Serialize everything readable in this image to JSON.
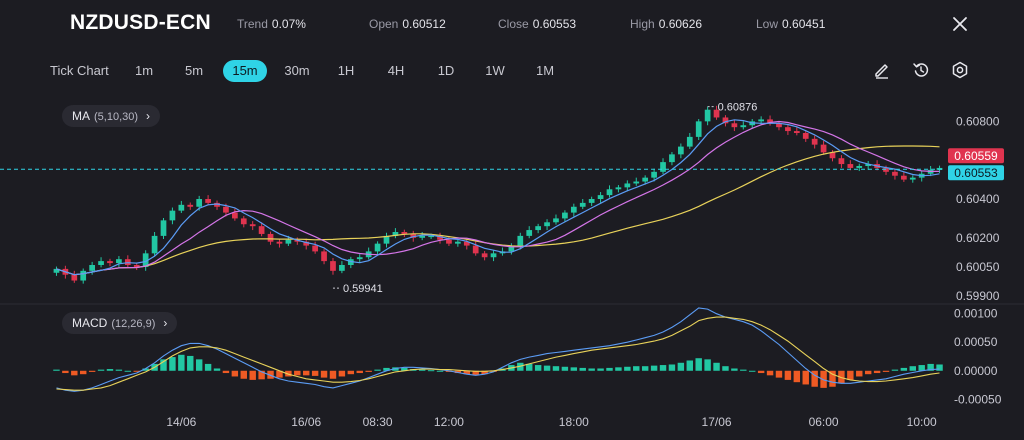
{
  "header": {
    "symbol": "NZDUSD-ECN",
    "stats": [
      {
        "label": "Trend",
        "value": "0.07%"
      },
      {
        "label": "Open",
        "value": "0.60512"
      },
      {
        "label": "Close",
        "value": "0.60553"
      },
      {
        "label": "High",
        "value": "0.60626"
      },
      {
        "label": "Low",
        "value": "0.60451"
      }
    ],
    "close_icon": "close-icon"
  },
  "toolbar": {
    "chart_type": "Tick Chart",
    "timeframes": [
      "1m",
      "5m",
      "15m",
      "30m",
      "1H",
      "4H",
      "1D",
      "1W",
      "1M"
    ],
    "active_timeframe": "15m",
    "tools": [
      "pencil-icon",
      "reset-icon",
      "settings-icon"
    ]
  },
  "indicators": {
    "ma": {
      "label": "MA",
      "params": "(5,10,30)"
    },
    "macd": {
      "label": "MACD",
      "params": "(12,26,9)"
    }
  },
  "colors": {
    "background": "#1c1c22",
    "bull": "#22c7a3",
    "bear": "#e0344f",
    "active_tab": "#2fd3e6",
    "ma5": "#5b9cf5",
    "ma10": "#d475e8",
    "ma30": "#e8d25a",
    "macd_hist_pos": "#22c7a3",
    "macd_hist_neg": "#ee5a24",
    "price_badge_high": "#e0344f",
    "price_badge_close": "#2fd3e6"
  },
  "price_badges": {
    "upper": "0.60559",
    "lower": "0.60553"
  },
  "annotations": {
    "high": "0.60876",
    "low": "0.59941"
  },
  "chart_data": [
    {
      "type": "candlestick",
      "title": "",
      "y_ticks": [
        "0.60800",
        "0.60400",
        "0.60200",
        "0.60050",
        "0.59900"
      ],
      "x_ticks": [
        "14/06",
        "16/06",
        "08:30",
        "12:00",
        "18:00",
        "17/06",
        "06:00",
        "10:00"
      ],
      "ylim": [
        0.5989,
        0.6091
      ],
      "current_price": 0.60553,
      "overlays": [
        "MA 5",
        "MA 10",
        "MA 30"
      ],
      "close_series": [
        0.6004,
        0.6001,
        0.5998,
        0.6003,
        0.6006,
        0.6008,
        0.6007,
        0.6009,
        0.6006,
        0.6005,
        0.6012,
        0.6021,
        0.6029,
        0.6034,
        0.6037,
        0.6036,
        0.604,
        0.6038,
        0.6036,
        0.6033,
        0.603,
        0.6027,
        0.6026,
        0.6022,
        0.6018,
        0.6017,
        0.6019,
        0.6018,
        0.6016,
        0.6013,
        0.6008,
        0.6003,
        0.6006,
        0.6009,
        0.601,
        0.6013,
        0.6017,
        0.6021,
        0.6023,
        0.6022,
        0.602,
        0.6021,
        0.6021,
        0.6019,
        0.6017,
        0.6018,
        0.6016,
        0.6012,
        0.601,
        0.6012,
        0.6013,
        0.6016,
        0.6021,
        0.6024,
        0.6026,
        0.6028,
        0.603,
        0.6033,
        0.6036,
        0.6038,
        0.604,
        0.6042,
        0.6045,
        0.6046,
        0.6048,
        0.6049,
        0.6051,
        0.6054,
        0.6059,
        0.6063,
        0.6067,
        0.6072,
        0.608,
        0.6086,
        0.6082,
        0.6079,
        0.6077,
        0.6078,
        0.608,
        0.6081,
        0.6079,
        0.6077,
        0.6075,
        0.6074,
        0.6071,
        0.6068,
        0.6064,
        0.6061,
        0.6058,
        0.6056,
        0.6057,
        0.6058,
        0.6056,
        0.6054,
        0.6052,
        0.605,
        0.6051,
        0.6053,
        0.6055,
        0.6056
      ]
    },
    {
      "type": "histogram",
      "title": "MACD",
      "y_ticks": [
        "0.00100",
        "0.00050",
        "0.00000",
        "-0.00050"
      ],
      "ylim": [
        -0.0006,
        0.0011
      ],
      "histogram": [
        2e-05,
        -4e-05,
        -8e-05,
        -6e-05,
        -2e-05,
        2e-05,
        3e-05,
        2e-05,
        0.0,
        -1e-05,
        4e-05,
        0.00012,
        0.0002,
        0.00024,
        0.00028,
        0.00026,
        0.0002,
        0.00012,
        4e-05,
        -4e-05,
        -0.0001,
        -0.00014,
        -0.00016,
        -0.00015,
        -0.00014,
        -0.00012,
        -0.0001,
        -8e-05,
        -8e-05,
        -9e-05,
        -0.00012,
        -0.00014,
        -0.0001,
        -6e-05,
        -4e-05,
        -2e-05,
        2e-05,
        5e-05,
        6e-05,
        5e-05,
        3e-05,
        2e-05,
        1e-05,
        0.0,
        -2e-05,
        -4e-05,
        -6e-05,
        -8e-05,
        -6e-05,
        -2e-05,
        4e-05,
        0.0001,
        0.00014,
        0.00012,
        0.0001,
        9e-05,
        8e-05,
        7e-05,
        6e-05,
        5e-05,
        4e-05,
        4e-05,
        5e-05,
        6e-05,
        7e-05,
        8e-05,
        8e-05,
        9e-05,
        0.0001,
        0.00011,
        0.00014,
        0.00018,
        0.00022,
        0.0002,
        0.00014,
        8e-05,
        4e-05,
        2e-05,
        0.0,
        -4e-05,
        -8e-05,
        -0.00012,
        -0.00016,
        -0.0002,
        -0.00024,
        -0.00028,
        -0.0003,
        -0.00028,
        -0.00022,
        -0.00016,
        -0.0001,
        -6e-05,
        -4e-05,
        -2e-05,
        2e-05,
        5e-05,
        8e-05,
        0.0001,
        0.00012,
        0.00011
      ],
      "macd_line": [
        -0.0003,
        -0.00034,
        -0.00036,
        -0.00034,
        -0.0003,
        -0.00024,
        -0.00018,
        -0.00012,
        -8e-05,
        -4e-05,
        4e-05,
        0.00014,
        0.00026,
        0.00036,
        0.00044,
        0.00048,
        0.00048,
        0.00044,
        0.00038,
        0.0003,
        0.00022,
        0.00014,
        6e-05,
        -2e-05,
        -8e-05,
        -0.00014,
        -0.00018,
        -0.0002,
        -0.00022,
        -0.00024,
        -0.00028,
        -0.0003,
        -0.00026,
        -0.00022,
        -0.00018,
        -0.00012,
        -6e-05,
        0.0,
        4e-05,
        6e-05,
        6e-05,
        5e-05,
        4e-05,
        2e-05,
        0.0,
        -3e-05,
        -6e-05,
        -8e-05,
        -6e-05,
        -2e-05,
        6e-05,
        0.00014,
        0.0002,
        0.00024,
        0.00027,
        0.0003,
        0.00032,
        0.00034,
        0.00036,
        0.00038,
        0.0004,
        0.00042,
        0.00044,
        0.00047,
        0.0005,
        0.00054,
        0.00058,
        0.00062,
        0.00068,
        0.00076,
        0.00086,
        0.00098,
        0.0011,
        0.00108,
        0.001,
        0.00094,
        0.0009,
        0.00086,
        0.0008,
        0.0007,
        0.00058,
        0.00046,
        0.00032,
        0.00018,
        4e-05,
        -8e-05,
        -0.00016,
        -0.0002,
        -0.00022,
        -0.00022,
        -0.0002,
        -0.00018,
        -0.00016,
        -0.00014,
        -0.0001,
        -6e-05,
        -3e-05,
        0.0,
        2e-05,
        3e-05
      ],
      "signal_line": [
        -0.00032,
        -0.00033,
        -0.00034,
        -0.00034,
        -0.00032,
        -0.0003,
        -0.00026,
        -0.0002,
        -0.00014,
        -8e-05,
        -2e-05,
        6e-05,
        0.00016,
        0.00026,
        0.00034,
        0.0004,
        0.00042,
        0.00042,
        0.0004,
        0.00036,
        0.0003,
        0.00024,
        0.00018,
        0.00012,
        6e-05,
        0.0,
        -6e-05,
        -0.0001,
        -0.00014,
        -0.00016,
        -0.00018,
        -0.0002,
        -0.0002,
        -0.00019,
        -0.00017,
        -0.00014,
        -0.0001,
        -6e-05,
        -2e-05,
        0.0,
        2e-05,
        3e-05,
        3e-05,
        2e-05,
        2e-05,
        1e-05,
        0.0,
        -1e-05,
        -1e-05,
        0.0,
        2e-05,
        5e-05,
        8e-05,
        0.00012,
        0.00016,
        0.0002,
        0.00024,
        0.00027,
        0.0003,
        0.00033,
        0.00036,
        0.00038,
        0.0004,
        0.00042,
        0.00044,
        0.00046,
        0.00049,
        0.00052,
        0.00056,
        0.00062,
        0.0007,
        0.00078,
        0.00088,
        0.00092,
        0.00094,
        0.00094,
        0.00092,
        0.0009,
        0.00086,
        0.0008,
        0.00072,
        0.00062,
        0.00052,
        0.0004,
        0.00028,
        0.00016,
        4e-05,
        -6e-05,
        -0.00012,
        -0.00016,
        -0.00018,
        -0.00019,
        -0.00019,
        -0.00018,
        -0.00016,
        -0.00014,
        -0.00012,
        -9e-05,
        -6e-05,
        -4e-05
      ]
    }
  ]
}
